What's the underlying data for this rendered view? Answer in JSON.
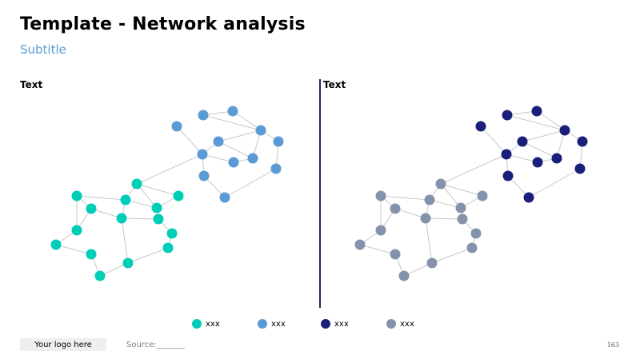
{
  "title": "Template - Network analysis",
  "subtitle": "Subtitle",
  "panels": [
    {
      "label": "Text"
    },
    {
      "label": "Text"
    }
  ],
  "colors": {
    "teal": "#00cdb8",
    "light_blue": "#5b9bd5",
    "navy": "#1a1f7a",
    "gray": "#8592ab",
    "edge": "#c8c8c8",
    "divider": "#1a2a5e"
  },
  "legend": [
    {
      "label": "xxx",
      "color": "#00cdb8"
    },
    {
      "label": "xxx",
      "color": "#5b9bd5"
    },
    {
      "label": "xxx",
      "color": "#1a1f7a"
    },
    {
      "label": "xxx",
      "color": "#8592ab"
    }
  ],
  "footer": {
    "logo": "Your logo here",
    "source": "Source:_______",
    "page": "163"
  }
}
